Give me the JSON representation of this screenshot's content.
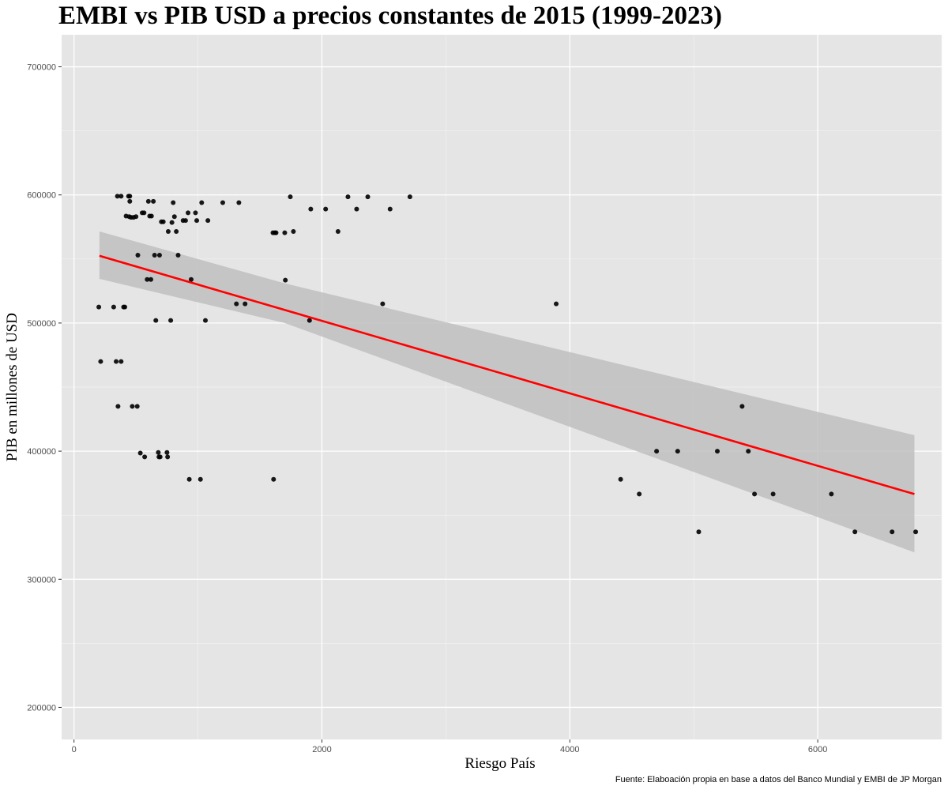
{
  "chart_data": {
    "type": "scatter",
    "title": "EMBI vs PIB USD a precios constantes de 2015 (1999-2023)",
    "xlabel": "Riesgo País",
    "ylabel": "PIB en millones de USD",
    "caption": "Fuente: Elaboación propia en base a datos del Banco Mundial y EMBI de JP Morgan",
    "xlim": [
      -100,
      7000
    ],
    "ylim": [
      175000,
      725000
    ],
    "x_ticks": [
      0,
      2000,
      4000,
      6000
    ],
    "x_tick_labels": [
      "0",
      "2000",
      "4000",
      "6000"
    ],
    "y_ticks": [
      200000,
      300000,
      400000,
      500000,
      600000,
      700000
    ],
    "y_tick_labels": [
      "200000",
      "300000",
      "400000",
      "500000",
      "600000",
      "700000"
    ],
    "grid": true,
    "background": "#e5e5e5",
    "point_color": "#000000",
    "trend_color": "#ff0000",
    "band_color": "#c0c0c0",
    "trend": {
      "method": "linear",
      "x": [
        205,
        6780
      ],
      "y": [
        552500,
        366500
      ]
    },
    "confidence_band": {
      "x": [
        205,
        1700,
        6780
      ],
      "lower": [
        534500,
        500000,
        321000
      ],
      "upper": [
        571500,
        531000,
        412500
      ]
    },
    "points": [
      [
        200,
        512500
      ],
      [
        215,
        470000
      ],
      [
        320,
        512500
      ],
      [
        340,
        470000
      ],
      [
        350,
        599000
      ],
      [
        355,
        435000
      ],
      [
        380,
        599000
      ],
      [
        380,
        470000
      ],
      [
        400,
        512500
      ],
      [
        410,
        512500
      ],
      [
        420,
        583500
      ],
      [
        440,
        599000
      ],
      [
        445,
        583000
      ],
      [
        450,
        595000
      ],
      [
        450,
        599000
      ],
      [
        460,
        582500
      ],
      [
        470,
        435000
      ],
      [
        480,
        582500
      ],
      [
        500,
        583000
      ],
      [
        510,
        435000
      ],
      [
        515,
        553000
      ],
      [
        535,
        398500
      ],
      [
        550,
        586000
      ],
      [
        565,
        586000
      ],
      [
        570,
        395500
      ],
      [
        590,
        534000
      ],
      [
        600,
        595000
      ],
      [
        610,
        583500
      ],
      [
        620,
        534000
      ],
      [
        625,
        583500
      ],
      [
        640,
        595000
      ],
      [
        650,
        553000
      ],
      [
        660,
        502000
      ],
      [
        680,
        399000
      ],
      [
        685,
        395500
      ],
      [
        690,
        553000
      ],
      [
        695,
        395500
      ],
      [
        705,
        579000
      ],
      [
        720,
        579000
      ],
      [
        750,
        399000
      ],
      [
        755,
        395500
      ],
      [
        760,
        571500
      ],
      [
        780,
        502000
      ],
      [
        790,
        578500
      ],
      [
        800,
        594000
      ],
      [
        810,
        583000
      ],
      [
        825,
        571500
      ],
      [
        840,
        553000
      ],
      [
        880,
        580000
      ],
      [
        900,
        580000
      ],
      [
        920,
        586000
      ],
      [
        930,
        378000
      ],
      [
        945,
        534000
      ],
      [
        980,
        586000
      ],
      [
        990,
        580000
      ],
      [
        1020,
        378000
      ],
      [
        1030,
        594000
      ],
      [
        1060,
        502000
      ],
      [
        1080,
        580000
      ],
      [
        1200,
        594000
      ],
      [
        1310,
        515000
      ],
      [
        1330,
        594000
      ],
      [
        1380,
        515000
      ],
      [
        1605,
        570500
      ],
      [
        1610,
        378000
      ],
      [
        1620,
        570500
      ],
      [
        1630,
        570500
      ],
      [
        1700,
        570500
      ],
      [
        1705,
        533500
      ],
      [
        1745,
        598500
      ],
      [
        1770,
        571500
      ],
      [
        1900,
        502000
      ],
      [
        1910,
        589000
      ],
      [
        2030,
        589000
      ],
      [
        2130,
        571500
      ],
      [
        2210,
        598500
      ],
      [
        2280,
        589000
      ],
      [
        2370,
        598500
      ],
      [
        2490,
        515000
      ],
      [
        2550,
        589000
      ],
      [
        2710,
        598500
      ],
      [
        3890,
        515000
      ],
      [
        4410,
        378000
      ],
      [
        4560,
        366500
      ],
      [
        4700,
        400000
      ],
      [
        4870,
        400000
      ],
      [
        5040,
        337000
      ],
      [
        5190,
        400000
      ],
      [
        5390,
        435000
      ],
      [
        5440,
        400000
      ],
      [
        5490,
        366500
      ],
      [
        5640,
        366500
      ],
      [
        6110,
        366500
      ],
      [
        6300,
        337000
      ],
      [
        6600,
        337000
      ],
      [
        6790,
        337000
      ]
    ]
  }
}
